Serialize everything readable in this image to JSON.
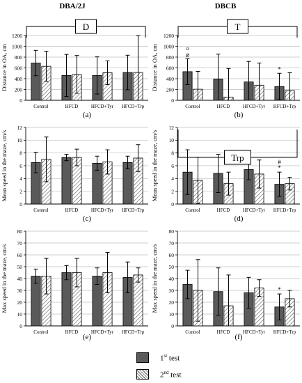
{
  "headers": {
    "left": "DBA/2J",
    "right": "DBCB"
  },
  "colors": {
    "test1_fill": "#5a5a5a",
    "test2_fill": "hatch",
    "axis": "#000000",
    "grid": "#bfbfbf"
  },
  "legend": {
    "test1": {
      "prefix": "1",
      "sup": "st",
      "suffix": " test"
    },
    "test2": {
      "prefix": "2",
      "sup": "nd",
      "suffix": " test"
    }
  },
  "chart_data": [
    {
      "panel": "(a)",
      "type": "bar",
      "categories": [
        "Control",
        "HFCD",
        "HFCD+Tyr",
        "HFCD+Trp"
      ],
      "ylabel": "Distance in OA, cm",
      "yticks": [
        "0",
        "200",
        "400",
        "600",
        "800",
        "1000",
        "1200"
      ],
      "ylim": [
        0,
        1200
      ],
      "grid": true,
      "series": [
        {
          "name": "1st test",
          "values": [
            690,
            460,
            460,
            515
          ],
          "errors": [
            235,
            390,
            345,
            320
          ]
        },
        {
          "name": "2nd test",
          "values": [
            630,
            480,
            510,
            515
          ],
          "errors": [
            280,
            350,
            220,
            680
          ]
        }
      ],
      "bracket": {
        "label": "D",
        "from": 0,
        "to": 3
      },
      "annotations": []
    },
    {
      "panel": "(b)",
      "type": "bar",
      "categories": [
        "Control",
        "HFCD",
        "HFCD+Tyr",
        "HFCD+Trp"
      ],
      "ylabel": "Distance in OA, cm",
      "yticks": [
        "0",
        "200",
        "400",
        "600",
        "800",
        "1000",
        "1200"
      ],
      "ylim": [
        0,
        1200
      ],
      "grid": true,
      "series": [
        {
          "name": "1st test",
          "values": [
            530,
            395,
            340,
            255
          ],
          "errors": [
            240,
            460,
            380,
            245
          ]
        },
        {
          "name": "2nd test",
          "values": [
            205,
            60,
            280,
            180
          ],
          "errors": [
            330,
            530,
            410,
            330
          ]
        }
      ],
      "bracket": {
        "label": "T",
        "from": 0,
        "to": 3
      },
      "annotations": [
        {
          "cat": 0,
          "bar": 0,
          "text": "⌀"
        },
        {
          "cat": 0,
          "bar": 0,
          "text": "¤"
        },
        {
          "cat": 3,
          "bar": 0,
          "text": "*"
        }
      ]
    },
    {
      "panel": "(c)",
      "type": "bar",
      "categories": [
        "Control",
        "HFCD",
        "HFCD+Tyr",
        "HFCD+Trp"
      ],
      "ylabel": "Mean speed in the maze, cm/s",
      "yticks": [
        "0",
        "2",
        "4",
        "6",
        "8",
        "10",
        "12"
      ],
      "ylim": [
        0,
        12
      ],
      "grid": true,
      "series": [
        {
          "name": "1st test",
          "values": [
            6.5,
            7.3,
            6.4,
            6.5
          ],
          "errors": [
            1.6,
            0.5,
            1.1,
            1.0
          ]
        },
        {
          "name": "2nd test",
          "values": [
            7.0,
            7.3,
            6.6,
            7.2
          ],
          "errors": [
            3.5,
            1.3,
            1.9,
            2.1
          ]
        }
      ],
      "annotations": []
    },
    {
      "panel": "(d)",
      "type": "bar",
      "categories": [
        "Control",
        "HFCD",
        "HFCD+Tyr",
        "HFCD+Trp"
      ],
      "ylabel": "Mean speed in the maze, cm/s",
      "yticks": [
        "0",
        "2",
        "4",
        "6",
        "8",
        "10",
        "12"
      ],
      "ylim": [
        0,
        12
      ],
      "grid": true,
      "series": [
        {
          "name": "1st test",
          "values": [
            5.0,
            4.8,
            5.4,
            3.1
          ],
          "errors": [
            3.5,
            3.0,
            1.6,
            1.9
          ]
        },
        {
          "name": "2nd test",
          "values": [
            3.7,
            3.2,
            4.7,
            3.2
          ],
          "errors": [
            3.6,
            1.8,
            2.2,
            1.0
          ]
        }
      ],
      "bracket": {
        "label": "Trp",
        "from": 0,
        "to": 3
      },
      "annotations": [
        {
          "cat": 3,
          "bar": 0,
          "text": "*"
        },
        {
          "cat": 3,
          "bar": 0,
          "text": "#"
        }
      ]
    },
    {
      "panel": "(e)",
      "type": "bar",
      "categories": [
        "Control",
        "HFCD",
        "HFCD+Tyr",
        "HFCD+Trp"
      ],
      "ylabel": "Max speed in the maze, cm/s",
      "yticks": [
        "0",
        "10",
        "20",
        "30",
        "40",
        "50",
        "60",
        "70",
        "80"
      ],
      "ylim": [
        0,
        80
      ],
      "grid": true,
      "series": [
        {
          "name": "1st test",
          "values": [
            42,
            45,
            42,
            41
          ],
          "errors": [
            6,
            6,
            7,
            13
          ]
        },
        {
          "name": "2nd test",
          "values": [
            42,
            45,
            45,
            43
          ],
          "errors": [
            15,
            12,
            17,
            6
          ]
        }
      ],
      "annotations": []
    },
    {
      "panel": "(f)",
      "type": "bar",
      "categories": [
        "Control",
        "HFCD",
        "HFCD+Tyr",
        "HFCD+Trp"
      ],
      "ylabel": "Max speed in the maze, cm/s",
      "yticks": [
        "0",
        "10",
        "20",
        "30",
        "40",
        "50",
        "60",
        "70",
        "80"
      ],
      "ylim": [
        0,
        80
      ],
      "grid": true,
      "series": [
        {
          "name": "1st test",
          "values": [
            35,
            29,
            28,
            16
          ],
          "errors": [
            12,
            20,
            13,
            11
          ]
        },
        {
          "name": "2nd test",
          "values": [
            30,
            17,
            32,
            23
          ],
          "errors": [
            26,
            26,
            7,
            7
          ]
        }
      ],
      "annotations": [
        {
          "cat": 3,
          "bar": 0,
          "text": "*"
        }
      ]
    }
  ]
}
